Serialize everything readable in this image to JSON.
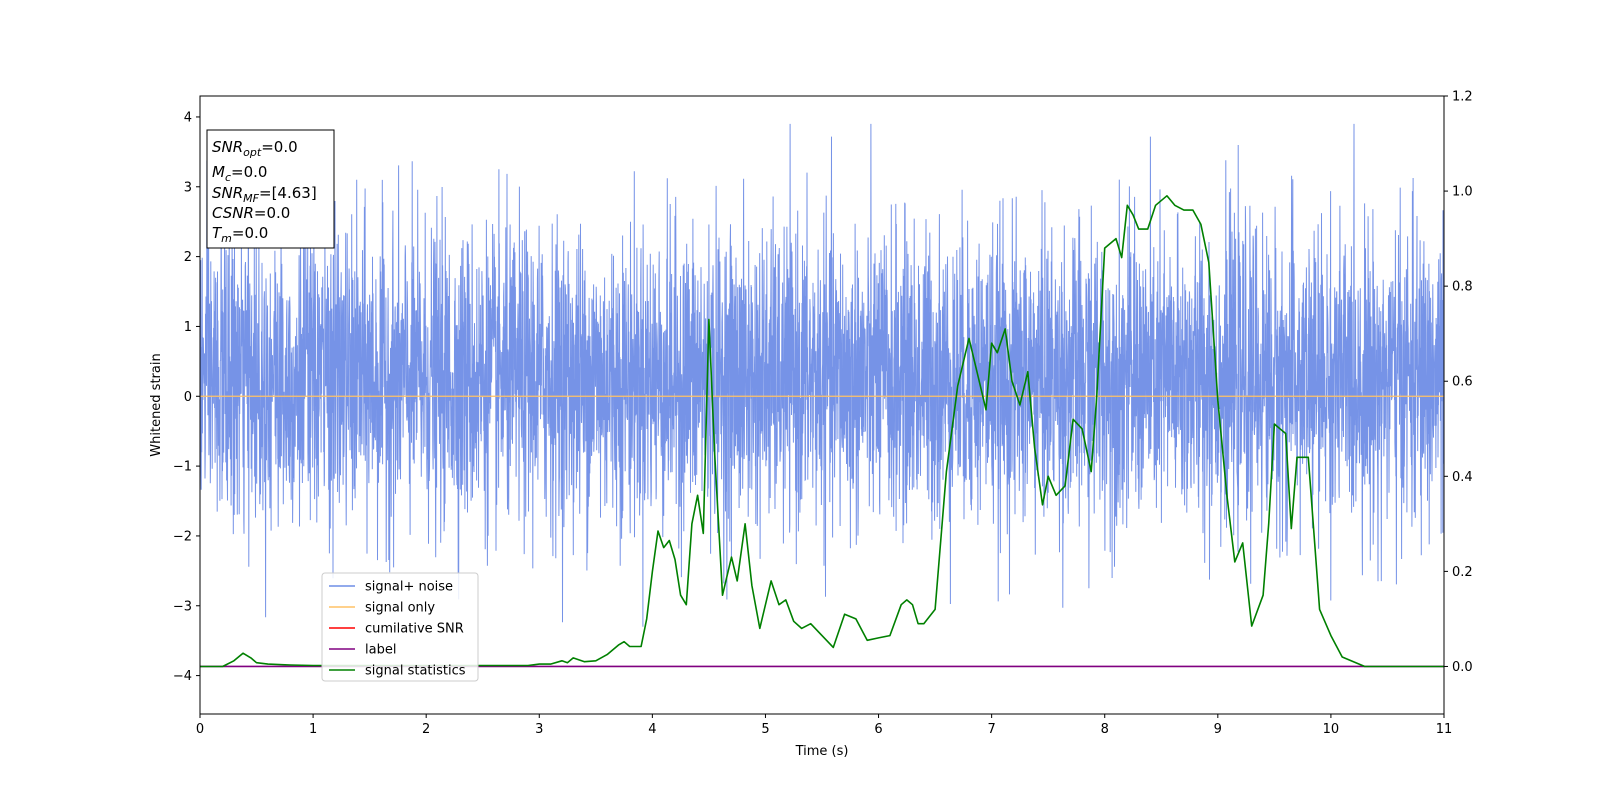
{
  "chart_data": {
    "type": "line",
    "xlabel": "Time (s)",
    "ylabel": "Whitened strain",
    "xlim": [
      0,
      11
    ],
    "ylim": [
      -4.55,
      4.3
    ],
    "y2lim": [
      -0.1,
      1.2
    ],
    "x_ticks": [
      "0",
      "1",
      "2",
      "3",
      "4",
      "5",
      "6",
      "7",
      "8",
      "9",
      "10",
      "11"
    ],
    "y_ticks": [
      "−4",
      "−3",
      "−2",
      "−1",
      "0",
      "1",
      "2",
      "3",
      "4"
    ],
    "y2_ticks": [
      "0.0",
      "0.2",
      "0.4",
      "0.6",
      "0.8",
      "1.0",
      "1.2"
    ],
    "grid": false,
    "legend_position": "lower-left",
    "legend": [
      {
        "label": "signal+ noise",
        "color": "#6f8de6"
      },
      {
        "label": "signal only",
        "color": "#ffc266"
      },
      {
        "label": "cumilative SNR",
        "color": "#ff0000"
      },
      {
        "label": "label",
        "color": "#800080"
      },
      {
        "label": "signal statistics",
        "color": "#008000"
      }
    ],
    "annotation": [
      {
        "base": "SNR",
        "sub": "opt",
        "value": "=0.0"
      },
      {
        "base": "M",
        "sub": "c",
        "value": "=0.0"
      },
      {
        "base": "SNR",
        "sub": "MF",
        "value": "=[4.63]"
      },
      {
        "base": "CSNR",
        "sub": "",
        "value": "=0.0"
      },
      {
        "base": "T",
        "sub": "m",
        "value": "=0.0"
      }
    ],
    "series": [
      {
        "name": "signal+ noise",
        "axis": "left",
        "color": "#6f8de6",
        "description": "dense random noise spanning roughly -2 to 2.5 with spikes to about ±4",
        "approx_range": [
          -4.15,
          3.9
        ]
      },
      {
        "name": "signal only",
        "axis": "left",
        "color": "#ffc266",
        "x": [
          0,
          11
        ],
        "y": [
          0,
          0
        ]
      },
      {
        "name": "cumilative SNR",
        "axis": "left",
        "color": "#ff0000",
        "x": [],
        "y": []
      },
      {
        "name": "label",
        "axis": "right",
        "color": "#800080",
        "x": [
          0,
          11
        ],
        "y": [
          0,
          0
        ]
      },
      {
        "name": "signal statistics",
        "axis": "right",
        "color": "#008000",
        "x": [
          0,
          0.2,
          0.3,
          0.38,
          0.45,
          0.5,
          0.6,
          0.8,
          1.0,
          1.5,
          2.0,
          2.5,
          2.9,
          3.0,
          3.1,
          3.2,
          3.25,
          3.3,
          3.4,
          3.5,
          3.6,
          3.7,
          3.75,
          3.8,
          3.9,
          3.95,
          4.0,
          4.05,
          4.1,
          4.15,
          4.2,
          4.25,
          4.3,
          4.35,
          4.4,
          4.45,
          4.5,
          4.55,
          4.62,
          4.7,
          4.75,
          4.82,
          4.88,
          4.95,
          5.05,
          5.12,
          5.18,
          5.25,
          5.32,
          5.4,
          5.5,
          5.6,
          5.7,
          5.8,
          5.9,
          6.0,
          6.1,
          6.2,
          6.25,
          6.3,
          6.35,
          6.4,
          6.5,
          6.6,
          6.7,
          6.8,
          6.88,
          6.95,
          7.0,
          7.05,
          7.12,
          7.18,
          7.25,
          7.32,
          7.38,
          7.45,
          7.5,
          7.57,
          7.65,
          7.72,
          7.8,
          7.88,
          7.93,
          8.0,
          8.1,
          8.15,
          8.2,
          8.25,
          8.3,
          8.38,
          8.45,
          8.55,
          8.62,
          8.7,
          8.78,
          8.85,
          8.92,
          9.0,
          9.08,
          9.15,
          9.22,
          9.3,
          9.4,
          9.45,
          9.5,
          9.55,
          9.6,
          9.65,
          9.7,
          9.8,
          9.9,
          10.0,
          10.1,
          10.3,
          10.5,
          11.0
        ],
        "y": [
          0.0,
          0.0,
          0.012,
          0.028,
          0.018,
          0.008,
          0.005,
          0.003,
          0.002,
          0.002,
          0.002,
          0.002,
          0.002,
          0.005,
          0.005,
          0.012,
          0.008,
          0.018,
          0.01,
          0.012,
          0.025,
          0.045,
          0.052,
          0.042,
          0.042,
          0.1,
          0.2,
          0.285,
          0.25,
          0.265,
          0.225,
          0.15,
          0.13,
          0.3,
          0.36,
          0.28,
          0.73,
          0.45,
          0.15,
          0.23,
          0.18,
          0.3,
          0.17,
          0.08,
          0.18,
          0.13,
          0.14,
          0.095,
          0.08,
          0.09,
          0.065,
          0.04,
          0.11,
          0.1,
          0.055,
          0.06,
          0.065,
          0.13,
          0.14,
          0.13,
          0.09,
          0.09,
          0.12,
          0.41,
          0.59,
          0.69,
          0.61,
          0.54,
          0.68,
          0.66,
          0.71,
          0.6,
          0.55,
          0.62,
          0.46,
          0.34,
          0.4,
          0.36,
          0.38,
          0.52,
          0.5,
          0.41,
          0.57,
          0.88,
          0.9,
          0.86,
          0.97,
          0.95,
          0.92,
          0.92,
          0.97,
          0.99,
          0.97,
          0.96,
          0.96,
          0.93,
          0.85,
          0.56,
          0.36,
          0.22,
          0.26,
          0.085,
          0.15,
          0.3,
          0.51,
          0.5,
          0.49,
          0.29,
          0.44,
          0.44,
          0.12,
          0.065,
          0.02,
          0.0,
          0.0,
          0.0
        ]
      }
    ]
  }
}
